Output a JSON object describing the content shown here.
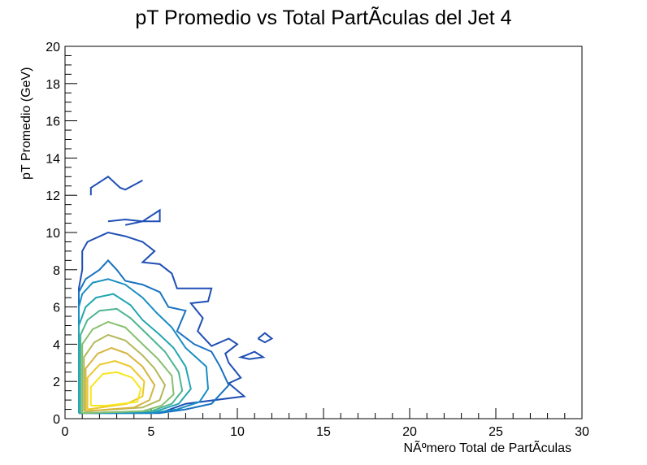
{
  "chart_data": {
    "type": "contour",
    "title": "pT Promedio vs Total PartÃ­culas del Jet 4",
    "xlabel": "NÃºmero Total de PartÃ­culas",
    "ylabel": "pT Promedio (GeV)",
    "xlim": [
      0,
      30
    ],
    "ylim": [
      0,
      20
    ],
    "x_ticks": [
      "0",
      "5",
      "10",
      "15",
      "20",
      "25",
      "30"
    ],
    "y_ticks": [
      "0",
      "2",
      "4",
      "6",
      "8",
      "10",
      "12",
      "14",
      "16",
      "18",
      "20"
    ],
    "grid": false,
    "legend": "none",
    "levels": [
      {
        "color": "#1f4fb5",
        "points": [
          [
            0.8,
            0.3
          ],
          [
            0.8,
            7.0
          ],
          [
            1.0,
            8.0
          ],
          [
            1.0,
            9.0
          ],
          [
            1.3,
            9.5
          ],
          [
            2.5,
            10.0
          ],
          [
            3.5,
            9.8
          ],
          [
            4.5,
            9.5
          ],
          [
            5.2,
            9.0
          ],
          [
            4.5,
            8.4
          ],
          [
            5.5,
            8.3
          ],
          [
            6.2,
            7.8
          ],
          [
            6.5,
            7.0
          ],
          [
            8.5,
            7.0
          ],
          [
            8.3,
            6.3
          ],
          [
            7.3,
            6.2
          ],
          [
            8.0,
            5.4
          ],
          [
            7.7,
            4.7
          ],
          [
            8.5,
            3.9
          ],
          [
            9.5,
            4.3
          ],
          [
            10.0,
            4.0
          ],
          [
            9.3,
            3.5
          ],
          [
            9.5,
            3.0
          ],
          [
            10.2,
            2.2
          ],
          [
            9.5,
            1.9
          ],
          [
            10.4,
            1.2
          ],
          [
            7.0,
            0.8
          ],
          [
            5.5,
            0.3
          ],
          [
            0.8,
            0.3
          ]
        ]
      },
      {
        "color": "#1f4fb5",
        "points": [
          [
            1.5,
            12.0
          ],
          [
            1.5,
            12.4
          ],
          [
            2.5,
            13.0
          ],
          [
            3.2,
            12.4
          ],
          [
            3.5,
            12.3
          ],
          [
            4.5,
            12.8
          ]
        ]
      },
      {
        "color": "#1f4fb5",
        "points": [
          [
            2.5,
            10.6
          ],
          [
            3.5,
            10.7
          ],
          [
            4.5,
            10.6
          ],
          [
            5.5,
            11.2
          ],
          [
            5.5,
            10.6
          ],
          [
            4.5,
            10.6
          ],
          [
            3.5,
            10.4
          ]
        ]
      },
      {
        "color": "#1f4fb5",
        "points": [
          [
            10.5,
            3.4
          ],
          [
            11.0,
            3.6
          ],
          [
            11.5,
            3.3
          ],
          [
            10.7,
            3.2
          ],
          [
            10.2,
            3.3
          ],
          [
            10.5,
            3.4
          ]
        ]
      },
      {
        "color": "#1f4fb5",
        "points": [
          [
            11.2,
            4.3
          ],
          [
            11.6,
            4.6
          ],
          [
            12.0,
            4.3
          ],
          [
            11.6,
            4.1
          ],
          [
            11.2,
            4.3
          ]
        ]
      },
      {
        "color": "#1a72c0",
        "points": [
          [
            0.8,
            0.3
          ],
          [
            0.8,
            6.8
          ],
          [
            1.2,
            7.5
          ],
          [
            2.0,
            8.0
          ],
          [
            2.5,
            8.5
          ],
          [
            3.0,
            8.0
          ],
          [
            3.5,
            7.4
          ],
          [
            4.5,
            7.2
          ],
          [
            5.5,
            6.8
          ],
          [
            6.0,
            6.0
          ],
          [
            7.0,
            5.8
          ],
          [
            6.5,
            4.7
          ],
          [
            7.5,
            4.0
          ],
          [
            8.5,
            3.6
          ],
          [
            9.0,
            2.8
          ],
          [
            9.5,
            1.8
          ],
          [
            8.5,
            0.8
          ],
          [
            7.0,
            0.5
          ],
          [
            5.5,
            0.3
          ],
          [
            0.8,
            0.3
          ]
        ]
      },
      {
        "color": "#198ec3",
        "points": [
          [
            0.8,
            0.3
          ],
          [
            0.8,
            6.0
          ],
          [
            1.0,
            6.7
          ],
          [
            1.6,
            7.3
          ],
          [
            2.5,
            7.5
          ],
          [
            3.5,
            7.2
          ],
          [
            4.5,
            6.5
          ],
          [
            5.3,
            5.7
          ],
          [
            6.2,
            4.9
          ],
          [
            7.0,
            3.8
          ],
          [
            8.2,
            2.8
          ],
          [
            8.3,
            1.6
          ],
          [
            7.8,
            0.9
          ],
          [
            6.5,
            0.5
          ],
          [
            5.0,
            0.3
          ],
          [
            0.8,
            0.3
          ]
        ]
      },
      {
        "color": "#23a6b3",
        "points": [
          [
            0.8,
            0.3
          ],
          [
            0.8,
            5.0
          ],
          [
            1.2,
            6.0
          ],
          [
            1.8,
            6.5
          ],
          [
            2.8,
            6.7
          ],
          [
            3.8,
            6.1
          ],
          [
            4.5,
            5.3
          ],
          [
            5.5,
            4.5
          ],
          [
            6.3,
            3.8
          ],
          [
            7.0,
            2.8
          ],
          [
            7.3,
            1.6
          ],
          [
            6.6,
            0.8
          ],
          [
            5.3,
            0.4
          ],
          [
            0.8,
            0.3
          ]
        ]
      },
      {
        "color": "#4db58f",
        "points": [
          [
            0.9,
            0.3
          ],
          [
            0.9,
            4.5
          ],
          [
            1.3,
            5.3
          ],
          [
            2.0,
            5.8
          ],
          [
            3.0,
            5.9
          ],
          [
            3.8,
            5.4
          ],
          [
            4.8,
            4.5
          ],
          [
            5.8,
            3.6
          ],
          [
            6.6,
            2.5
          ],
          [
            6.8,
            1.5
          ],
          [
            6.2,
            0.8
          ],
          [
            5.0,
            0.4
          ],
          [
            0.9,
            0.3
          ]
        ]
      },
      {
        "color": "#86c06f",
        "points": [
          [
            1.0,
            0.3
          ],
          [
            1.0,
            4.0
          ],
          [
            1.6,
            4.8
          ],
          [
            2.5,
            5.2
          ],
          [
            3.5,
            4.9
          ],
          [
            4.5,
            4.0
          ],
          [
            5.4,
            3.2
          ],
          [
            6.2,
            2.3
          ],
          [
            6.3,
            1.3
          ],
          [
            5.6,
            0.7
          ],
          [
            4.5,
            0.4
          ],
          [
            1.0,
            0.3
          ]
        ]
      },
      {
        "color": "#b3b85a",
        "points": [
          [
            1.1,
            0.4
          ],
          [
            1.1,
            3.3
          ],
          [
            1.7,
            4.1
          ],
          [
            2.5,
            4.5
          ],
          [
            3.5,
            4.2
          ],
          [
            4.5,
            3.4
          ],
          [
            5.2,
            2.7
          ],
          [
            5.8,
            1.8
          ],
          [
            5.5,
            1.0
          ],
          [
            4.5,
            0.6
          ],
          [
            1.1,
            0.4
          ]
        ]
      },
      {
        "color": "#d8b440",
        "points": [
          [
            1.2,
            0.4
          ],
          [
            1.2,
            2.7
          ],
          [
            1.9,
            3.5
          ],
          [
            2.7,
            3.8
          ],
          [
            3.6,
            3.5
          ],
          [
            4.5,
            2.8
          ],
          [
            5.2,
            1.8
          ],
          [
            4.9,
            1.0
          ],
          [
            4.0,
            0.6
          ],
          [
            1.2,
            0.4
          ]
        ]
      },
      {
        "color": "#ecc82a",
        "points": [
          [
            1.3,
            0.5
          ],
          [
            1.3,
            2.2
          ],
          [
            2.0,
            2.9
          ],
          [
            2.9,
            3.1
          ],
          [
            3.8,
            2.8
          ],
          [
            4.6,
            2.0
          ],
          [
            4.5,
            1.2
          ],
          [
            3.6,
            0.8
          ],
          [
            1.3,
            0.5
          ]
        ]
      },
      {
        "color": "#f7e61d",
        "points": [
          [
            1.5,
            0.7
          ],
          [
            1.5,
            1.7
          ],
          [
            2.2,
            2.4
          ],
          [
            3.0,
            2.5
          ],
          [
            3.9,
            2.2
          ],
          [
            4.4,
            1.6
          ],
          [
            4.2,
            0.9
          ],
          [
            3.3,
            0.8
          ],
          [
            2.4,
            0.7
          ],
          [
            1.5,
            0.7
          ]
        ]
      }
    ]
  }
}
